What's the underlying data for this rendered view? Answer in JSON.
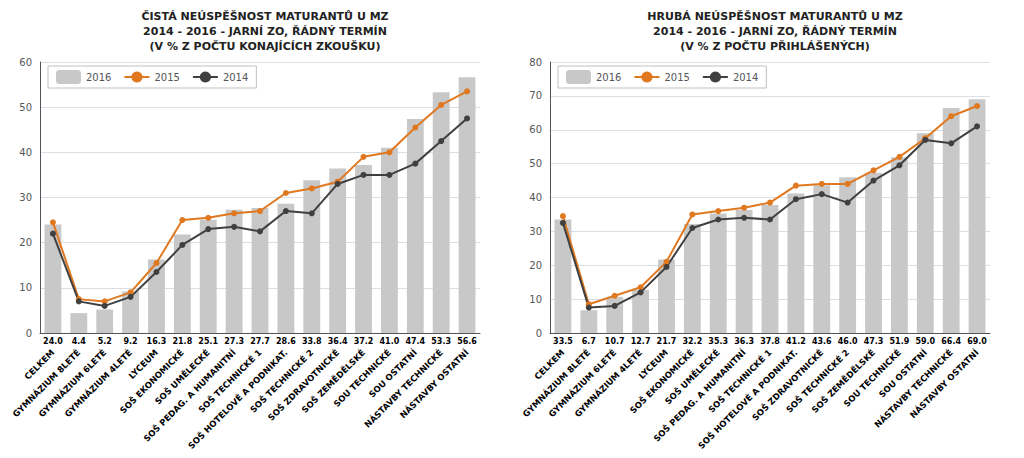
{
  "chart_data": [
    {
      "type": "bar",
      "title": "ČISTÁ NEÚSPĚŠNOST MATURANTŮ U MZ\n2014 - 2016 - JARNÍ ZO, ŘÁDNÝ TERMÍN\n(V % Z POČTU KONAJÍCÍCH ZKOUŠKU)",
      "categories": [
        "CELKEM",
        "GYMNÁZIUM 8LETÉ",
        "GYMNÁZIUM 6LETÉ",
        "GYMNÁZIUM 4LETÉ",
        "LYCEUM",
        "SOŠ EKONOMICKÉ",
        "SOŠ UMĚLECKÉ",
        "SOŠ PEDAG. A HUMANITNÍ",
        "SOŠ TECHNICKÉ 1",
        "SOŠ HOTELOVÉ A PODNIKAT.",
        "SOŠ TECHNICKÉ 2",
        "SOŠ ZDRAVOTNICKÉ",
        "SOŠ ZEMĚDĚLSKÉ",
        "SOU TECHNICKÉ",
        "SOU OSTATNÍ",
        "NÁSTAVBY TECHNICKÉ",
        "NÁSTAVBY OSTATNÍ"
      ],
      "ylim": [
        0,
        60
      ],
      "yticks": [
        0,
        10,
        20,
        30,
        40,
        50,
        60
      ],
      "grid": true,
      "legend": "upper left",
      "series": [
        {
          "name": "2016",
          "type": "bar",
          "color": "#c8c8c8",
          "data_labels": true,
          "values": [
            24.0,
            4.4,
            5.2,
            9.2,
            16.3,
            21.8,
            25.1,
            27.3,
            27.7,
            28.6,
            33.8,
            36.4,
            37.2,
            41.0,
            47.4,
            53.3,
            56.6
          ],
          "value_labels": [
            "24.0",
            "4.4",
            "5.2",
            "9.2",
            "16.3",
            "21.8",
            "25.1",
            "27.3",
            "27.7",
            "28.6",
            "33.8",
            "36.4",
            "37.2",
            "41.0",
            "47.4",
            "53.3",
            "56.6"
          ]
        },
        {
          "name": "2015",
          "type": "line",
          "color": "#e07820",
          "marker": "circle",
          "values": [
            24.5,
            7.5,
            7.0,
            9.0,
            15.5,
            25.0,
            25.5,
            26.5,
            27.0,
            31.0,
            32.0,
            33.5,
            39.0,
            40.0,
            45.5,
            50.5,
            53.5
          ]
        },
        {
          "name": "2014",
          "type": "line",
          "color": "#404040",
          "marker": "circle",
          "values": [
            22.0,
            7.0,
            6.0,
            8.0,
            13.5,
            19.5,
            23.0,
            23.5,
            22.5,
            27.0,
            26.5,
            33.0,
            35.0,
            35.0,
            37.5,
            42.5,
            47.5
          ]
        }
      ]
    },
    {
      "type": "bar",
      "title": "HRUBÁ NEÚSPĚŠNOST MATURANTŮ U MZ\n2014 - 2016 - JARNÍ ZO, ŘÁDNÝ TERMÍN\n(V % Z POČTU PŘIHLÁŠENÝCH)",
      "categories": [
        "CELKEM",
        "GYMNÁZIUM 8LETÉ",
        "GYMNÁZIUM 6LETÉ",
        "GYMNÁZIUM 4LETÉ",
        "LYCEUM",
        "SOŠ EKONOMICKÉ",
        "SOŠ UMĚLECKÉ",
        "SOŠ PEDAG. A HUMANITNÍ",
        "SOŠ TECHNICKÉ 1",
        "SOŠ HOTELOVÉ A PODNIKAT.",
        "SOŠ ZDRAVOTNICKÉ",
        "SOŠ TECHNICKÉ 2",
        "SOŠ ZEMĚDĚLSKÉ",
        "SOU TECHNICKÉ",
        "SOU OSTATNÍ",
        "NÁSTAVBY TECHNICKÉ",
        "NÁSTAVBY OSTATNÍ"
      ],
      "ylim": [
        0,
        80
      ],
      "yticks": [
        0,
        10,
        20,
        30,
        40,
        50,
        60,
        70,
        80
      ],
      "grid": true,
      "legend": "upper left",
      "series": [
        {
          "name": "2016",
          "type": "bar",
          "color": "#c8c8c8",
          "data_labels": true,
          "values": [
            33.5,
            6.7,
            10.7,
            12.7,
            21.7,
            32.2,
            35.3,
            36.3,
            37.8,
            41.2,
            43.6,
            46.0,
            47.3,
            51.9,
            59.0,
            66.4,
            69.0
          ],
          "value_labels": [
            "33.5",
            "6.7",
            "10.7",
            "12.7",
            "21.7",
            "32.2",
            "35.3",
            "36.3",
            "37.8",
            "41.2",
            "43.6",
            "46.0",
            "47.3",
            "51.9",
            "59.0",
            "66.4",
            "69.0"
          ]
        },
        {
          "name": "2015",
          "type": "line",
          "color": "#e07820",
          "marker": "circle",
          "values": [
            34.5,
            8.5,
            11.0,
            13.5,
            21.0,
            35.0,
            36.0,
            37.0,
            38.5,
            43.5,
            44.0,
            44.0,
            48.0,
            52.0,
            57.5,
            64.0,
            67.0
          ]
        },
        {
          "name": "2014",
          "type": "line",
          "color": "#404040",
          "marker": "circle",
          "values": [
            32.5,
            7.5,
            8.0,
            12.0,
            19.5,
            31.0,
            33.5,
            34.0,
            33.5,
            39.5,
            41.0,
            38.5,
            45.0,
            49.5,
            57.0,
            56.0,
            61.0
          ]
        }
      ]
    }
  ]
}
